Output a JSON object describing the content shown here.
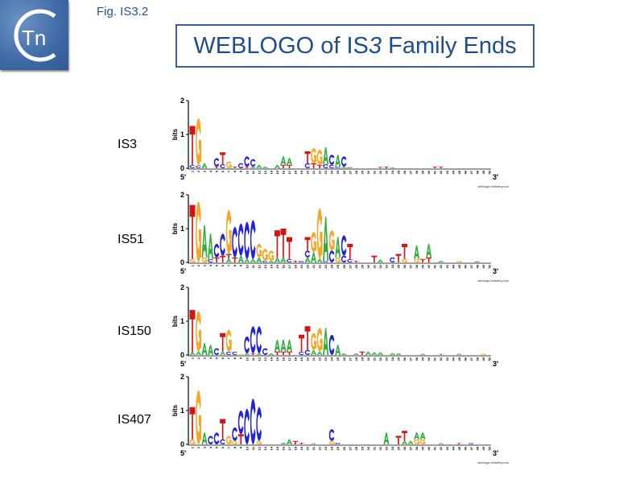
{
  "header": {
    "figure_label": "Fig. IS3.2",
    "title_prefix": "WEBLOGO of IS",
    "title_italic": "3",
    "title_suffix": " Family Ends",
    "logo_text": "Tn",
    "accent_color": "#1f4e8c"
  },
  "letter_colors": {
    "A": "#2fae3a",
    "C": "#2222d6",
    "G": "#f5a623",
    "T": "#d11515"
  },
  "chart_data": [
    {
      "type": "sequence-logo",
      "name": "IS3",
      "ylabel": "bits",
      "ylim": [
        0,
        2
      ],
      "yticks": [
        "0",
        "1",
        "2"
      ],
      "left_end": "5'",
      "right_end": "3'",
      "credit": "weblogo.berkeley.edu",
      "positions": 50,
      "stacks": {
        "1": [
          [
            "C",
            0.1
          ],
          [
            "T",
            1.15
          ]
        ],
        "2": [
          [
            "C",
            0.08
          ],
          [
            "G",
            1.4
          ]
        ],
        "3": [
          [
            "A",
            0.15
          ]
        ],
        "5": [
          [
            "T",
            0.05
          ],
          [
            "C",
            0.25
          ]
        ],
        "6": [
          [
            "C",
            0.12
          ],
          [
            "T",
            0.35
          ]
        ],
        "7": [
          [
            "G",
            0.2
          ]
        ],
        "8": [
          [
            "T",
            0.05
          ]
        ],
        "9": [
          [
            "C",
            0.15
          ]
        ],
        "10": [
          [
            "T",
            0.05
          ],
          [
            "C",
            0.3
          ]
        ],
        "11": [
          [
            "A",
            0.05
          ],
          [
            "C",
            0.22
          ]
        ],
        "12": [
          [
            "A",
            0.1
          ]
        ],
        "13": [
          [
            "A",
            0.05
          ]
        ],
        "15": [
          [
            "A",
            0.1
          ]
        ],
        "16": [
          [
            "T",
            0.1
          ],
          [
            "A",
            0.25
          ]
        ],
        "17": [
          [
            "T",
            0.1
          ],
          [
            "A",
            0.2
          ]
        ],
        "20": [
          [
            "C",
            0.15
          ],
          [
            "T",
            0.35
          ]
        ],
        "21": [
          [
            "T",
            0.15
          ],
          [
            "G",
            0.45
          ]
        ],
        "22": [
          [
            "T",
            0.1
          ],
          [
            "G",
            0.45
          ]
        ],
        "23": [
          [
            "C",
            0.12
          ],
          [
            "A",
            0.5
          ]
        ],
        "24": [
          [
            "C",
            0.1
          ],
          [
            "C",
            0.3
          ]
        ],
        "25": [
          [
            "C",
            0.05
          ],
          [
            "A",
            0.35
          ]
        ],
        "26": [
          [
            "A",
            0.05
          ],
          [
            "C",
            0.3
          ]
        ],
        "27": [
          [
            "C",
            0.03
          ]
        ],
        "32": [
          [
            "T",
            0.04
          ]
        ],
        "33": [
          [
            "T",
            0.05
          ]
        ],
        "34": [
          [
            "A",
            0.03
          ]
        ],
        "41": [
          [
            "T",
            0.05
          ]
        ],
        "42": [
          [
            "T",
            0.05
          ]
        ]
      }
    },
    {
      "type": "sequence-logo",
      "name": "IS51",
      "ylabel": "bits",
      "ylim": [
        0,
        2
      ],
      "yticks": [
        "0",
        "1",
        "2"
      ],
      "left_end": "5'",
      "right_end": "3'",
      "credit": "weblogo.berkeley.edu",
      "positions": 50,
      "stacks": {
        "1": [
          [
            "G",
            0.1
          ],
          [
            "T",
            1.6
          ]
        ],
        "2": [
          [
            "G",
            1.8
          ]
        ],
        "3": [
          [
            "G",
            0.15
          ],
          [
            "A",
            0.95
          ]
        ],
        "4": [
          [
            "C",
            0.1
          ],
          [
            "A",
            0.75
          ]
        ],
        "5": [
          [
            "T",
            0.15
          ],
          [
            "C",
            0.4
          ]
        ],
        "6": [
          [
            "T",
            0.2
          ],
          [
            "C",
            0.65
          ]
        ],
        "7": [
          [
            "A",
            0.1
          ],
          [
            "T",
            0.15
          ],
          [
            "G",
            1.3
          ]
        ],
        "8": [
          [
            "T",
            0.15
          ],
          [
            "C",
            0.9
          ]
        ],
        "9": [
          [
            "A",
            0.2
          ],
          [
            "C",
            0.95
          ]
        ],
        "10": [
          [
            "A",
            0.1
          ],
          [
            "C",
            1.1
          ]
        ],
        "11": [
          [
            "A",
            0.1
          ],
          [
            "C",
            1.15
          ]
        ],
        "12": [
          [
            "A",
            0.15
          ],
          [
            "G",
            0.4
          ]
        ],
        "13": [
          [
            "C",
            0.05
          ],
          [
            "G",
            0.35
          ]
        ],
        "14": [
          [
            "A",
            0.05
          ],
          [
            "G",
            0.3
          ]
        ],
        "15": [
          [
            "A",
            0.15
          ],
          [
            "T",
            0.8
          ]
        ],
        "16": [
          [
            "A",
            0.15
          ],
          [
            "T",
            0.85
          ]
        ],
        "17": [
          [
            "C",
            0.1
          ],
          [
            "T",
            0.65
          ]
        ],
        "18": [
          [
            "T",
            0.05
          ]
        ],
        "19": [
          [
            "C",
            0.05
          ]
        ],
        "20": [
          [
            "A",
            0.15
          ],
          [
            "C",
            0.2
          ],
          [
            "T",
            0.4
          ]
        ],
        "21": [
          [
            "A",
            0.3
          ],
          [
            "G",
            0.6
          ]
        ],
        "22": [
          [
            "A",
            0.1
          ],
          [
            "G",
            1.5
          ]
        ],
        "23": [
          [
            "C",
            0.05
          ],
          [
            "A",
            1.3
          ]
        ],
        "24": [
          [
            "C",
            0.35
          ],
          [
            "G",
            0.6
          ]
        ],
        "25": [
          [
            "G",
            0.15
          ],
          [
            "A",
            0.6
          ]
        ],
        "26": [
          [
            "C",
            0.2
          ],
          [
            "C",
            0.6
          ]
        ],
        "27": [
          [
            "C",
            0.1
          ],
          [
            "T",
            0.45
          ]
        ],
        "28": [
          [
            "T",
            0.05
          ]
        ],
        "31": [
          [
            "T",
            0.2
          ]
        ],
        "32": [
          [
            "A",
            0.08
          ]
        ],
        "34": [
          [
            "C",
            0.15
          ]
        ],
        "35": [
          [
            "T",
            0.25
          ]
        ],
        "36": [
          [
            "G",
            0.1
          ],
          [
            "T",
            0.45
          ]
        ],
        "38": [
          [
            "G",
            0.1
          ],
          [
            "A",
            0.4
          ]
        ],
        "39": [
          [
            "T",
            0.1
          ]
        ],
        "40": [
          [
            "T",
            0.15
          ],
          [
            "A",
            0.4
          ]
        ],
        "42": [
          [
            "A",
            0.05
          ]
        ],
        "45": [
          [
            "G",
            0.05
          ]
        ],
        "48": [
          [
            "C",
            0.03
          ]
        ]
      }
    },
    {
      "type": "sequence-logo",
      "name": "IS150",
      "ylabel": "bits",
      "ylim": [
        0,
        2
      ],
      "yticks": [
        "0",
        "1",
        "2"
      ],
      "left_end": "5'",
      "right_end": "3'",
      "credit": "",
      "positions": 50,
      "stacks": {
        "1": [
          [
            "A",
            0.08
          ],
          [
            "T",
            1.25
          ]
        ],
        "2": [
          [
            "A",
            0.1
          ],
          [
            "G",
            1.2
          ]
        ],
        "3": [
          [
            "A",
            0.35
          ]
        ],
        "4": [
          [
            "A",
            0.3
          ]
        ],
        "5": [
          [
            "C",
            0.2
          ]
        ],
        "6": [
          [
            "A",
            0.1
          ],
          [
            "T",
            0.55
          ]
        ],
        "7": [
          [
            "C",
            0.1
          ],
          [
            "G",
            0.65
          ]
        ],
        "8": [
          [
            "C",
            0.1
          ]
        ],
        "9": [
          [
            "G",
            0.03
          ]
        ],
        "10": [
          [
            "A",
            0.05
          ],
          [
            "C",
            0.5
          ]
        ],
        "11": [
          [
            "T",
            0.05
          ],
          [
            "C",
            0.8
          ]
        ],
        "12": [
          [
            "A",
            0.05
          ],
          [
            "C",
            0.8
          ]
        ],
        "13": [
          [
            "C",
            0.2
          ]
        ],
        "14": [
          [
            "A",
            0.05
          ]
        ],
        "15": [
          [
            "T",
            0.1
          ],
          [
            "A",
            0.35
          ]
        ],
        "16": [
          [
            "T",
            0.1
          ],
          [
            "A",
            0.35
          ]
        ],
        "17": [
          [
            "T",
            0.1
          ],
          [
            "A",
            0.35
          ]
        ],
        "19": [
          [
            "C",
            0.1
          ],
          [
            "T",
            0.5
          ]
        ],
        "20": [
          [
            "C",
            0.15
          ],
          [
            "T",
            0.7
          ]
        ],
        "21": [
          [
            "A",
            0.15
          ],
          [
            "G",
            0.5
          ]
        ],
        "22": [
          [
            "A",
            0.1
          ],
          [
            "G",
            0.7
          ]
        ],
        "23": [
          [
            "A",
            0.8
          ]
        ],
        "24": [
          [
            "C",
            0.6
          ]
        ],
        "25": [
          [
            "A",
            0.3
          ]
        ],
        "26": [
          [
            "A",
            0.05
          ]
        ],
        "28": [
          [
            "A",
            0.05
          ]
        ],
        "29": [
          [
            "T",
            0.1
          ]
        ],
        "30": [
          [
            "A",
            0.1
          ]
        ],
        "31": [
          [
            "A",
            0.08
          ]
        ],
        "32": [
          [
            "A",
            0.08
          ]
        ],
        "34": [
          [
            "A",
            0.06
          ]
        ],
        "35": [
          [
            "A",
            0.05
          ]
        ],
        "39": [
          [
            "A",
            0.04
          ]
        ],
        "42": [
          [
            "T",
            0.03
          ]
        ],
        "45": [
          [
            "A",
            0.04
          ]
        ],
        "49": [
          [
            "G",
            0.04
          ]
        ]
      }
    },
    {
      "type": "sequence-logo",
      "name": "IS407",
      "ylabel": "bits",
      "ylim": [
        0,
        2
      ],
      "yticks": [
        "0",
        "1",
        "2"
      ],
      "left_end": "5'",
      "right_end": "3'",
      "credit": "weblogo.berkeley.edu",
      "positions": 50,
      "stacks": {
        "1": [
          [
            "G",
            0.15
          ],
          [
            "T",
            0.95
          ]
        ],
        "2": [
          [
            "G",
            1.6
          ]
        ],
        "3": [
          [
            "A",
            0.35
          ]
        ],
        "4": [
          [
            "C",
            0.25
          ]
        ],
        "5": [
          [
            "C",
            0.35
          ]
        ],
        "6": [
          [
            "C",
            0.15
          ],
          [
            "T",
            0.6
          ]
        ],
        "7": [
          [
            "G",
            0.25
          ]
        ],
        "8": [
          [
            "G",
            0.1
          ],
          [
            "C",
            0.4
          ]
        ],
        "9": [
          [
            "T",
            0.3
          ],
          [
            "C",
            0.7
          ]
        ],
        "10": [
          [
            "C",
            1.05
          ]
        ],
        "11": [
          [
            "C",
            1.35
          ]
        ],
        "12": [
          [
            "G",
            0.1
          ],
          [
            "C",
            1.0
          ]
        ],
        "16": [
          [
            "A",
            0.05
          ]
        ],
        "17": [
          [
            "A",
            0.15
          ]
        ],
        "18": [
          [
            "T",
            0.1
          ]
        ],
        "19": [
          [
            "T",
            0.05
          ]
        ],
        "21": [
          [
            "A",
            0.03
          ]
        ],
        "24": [
          [
            "G",
            0.1
          ],
          [
            "C",
            0.35
          ]
        ],
        "25": [
          [
            "C",
            0.05
          ]
        ],
        "33": [
          [
            "A",
            0.35
          ]
        ],
        "35": [
          [
            "T",
            0.25
          ]
        ],
        "36": [
          [
            "A",
            0.1
          ],
          [
            "T",
            0.3
          ]
        ],
        "37": [
          [
            "A",
            0.1
          ]
        ],
        "38": [
          [
            "G",
            0.15
          ],
          [
            "A",
            0.2
          ]
        ],
        "39": [
          [
            "G",
            0.15
          ],
          [
            "A",
            0.2
          ]
        ],
        "42": [
          [
            "A",
            0.04
          ]
        ],
        "45": [
          [
            "T",
            0.04
          ]
        ],
        "47": [
          [
            "C",
            0.04
          ]
        ]
      }
    }
  ]
}
